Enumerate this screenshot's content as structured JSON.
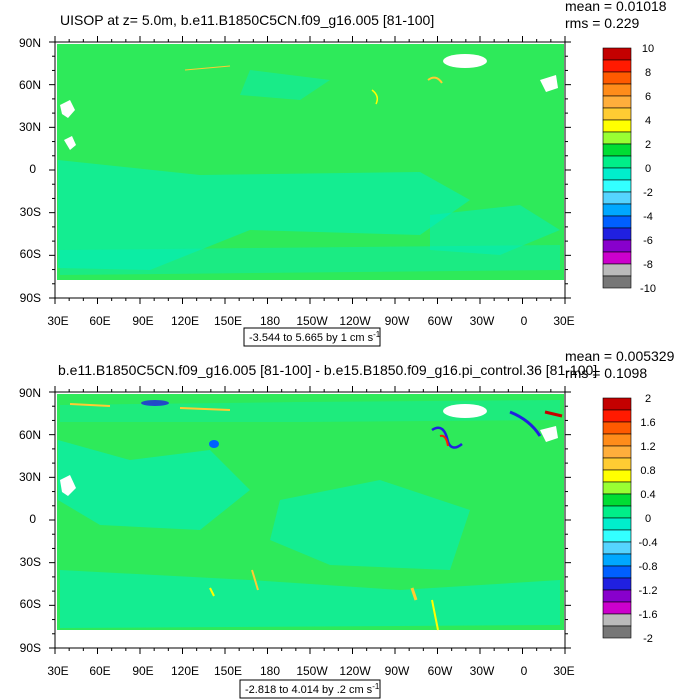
{
  "chart_data": [
    {
      "type": "heatmap",
      "title": "UISOP at z=   5.0m, b.e11.B1850C5CN.f09_g16.005 [81-100]",
      "stats": {
        "mean": "mean = 0.01018",
        "rms": "rms = 0.229"
      },
      "y_ticks": [
        "90N",
        "60N",
        "30N",
        "0",
        "30S",
        "60S",
        "90S"
      ],
      "x_ticks": [
        "30E",
        "60E",
        "90E",
        "120E",
        "150E",
        "180",
        "150W",
        "120W",
        "90W",
        "60W",
        "30W",
        "0",
        "30E"
      ],
      "caption": {
        "text": "-3.544 to 5.665 by 1 cm s",
        "exp": "-1"
      },
      "colorbar_labels": [
        "10",
        "8",
        "6",
        "4",
        "2",
        "0",
        "-2",
        "-4",
        "-6",
        "-8",
        "-10"
      ],
      "colorbar_colors": [
        "#c40000",
        "#ff1a00",
        "#ff5a00",
        "#ff8c1a",
        "#ffae3c",
        "#ffcc33",
        "#ffff00",
        "#99ff33",
        "#00dd33",
        "#00ee88",
        "#00eecc",
        "#33ffff",
        "#55d4ff",
        "#00a8ff",
        "#0060ff",
        "#2020e0",
        "#8800cc",
        "#cc00cc",
        "#bbbbbb",
        "#777777"
      ],
      "value_range": [
        -3.544,
        5.665
      ],
      "contour_interval": 1,
      "units": "cm s-1"
    },
    {
      "type": "heatmap",
      "title": "b.e11.B1850C5CN.f09_g16.005 [81-100] - b.e15.B1850.f09_g16.pi_control.36 [81-100]",
      "stats": {
        "mean": "mean = 0.005329",
        "rms": "rms = 0.1098"
      },
      "y_ticks": [
        "90N",
        "60N",
        "30N",
        "0",
        "30S",
        "60S",
        "90S"
      ],
      "x_ticks": [
        "30E",
        "60E",
        "90E",
        "120E",
        "150E",
        "180",
        "150W",
        "120W",
        "90W",
        "60W",
        "30W",
        "0",
        "30E"
      ],
      "caption": {
        "text": "-2.818 to 4.014 by .2 cm s",
        "exp": "-1"
      },
      "colorbar_labels": [
        "2",
        "1.6",
        "1.2",
        "0.8",
        "0.4",
        "0",
        "-0.4",
        "-0.8",
        "-1.2",
        "-1.6",
        "-2"
      ],
      "colorbar_colors": [
        "#c40000",
        "#ff1a00",
        "#ff5a00",
        "#ff8c1a",
        "#ffae3c",
        "#ffcc33",
        "#ffff00",
        "#99ff33",
        "#00dd33",
        "#00ee88",
        "#00eecc",
        "#33ffff",
        "#55d4ff",
        "#00a8ff",
        "#0060ff",
        "#2020e0",
        "#8800cc",
        "#cc00cc",
        "#bbbbbb",
        "#777777"
      ],
      "value_range": [
        -2.818,
        4.014
      ],
      "contour_interval": 0.2,
      "units": "cm s-1"
    }
  ],
  "colors": {
    "ocean_main": "#2eea5a",
    "ocean_light": "#00eec0",
    "land": "#ffffff"
  }
}
